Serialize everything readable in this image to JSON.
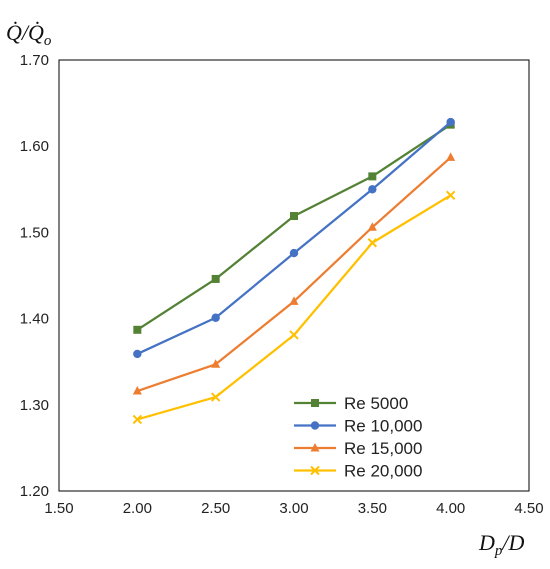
{
  "chart_data": {
    "type": "line",
    "ylabel": "Q̇/Q̇o",
    "xlabel": "Dp/D",
    "xlim": [
      1.5,
      4.5
    ],
    "ylim": [
      1.2,
      1.7
    ],
    "xticks": [
      "1.50",
      "2.00",
      "2.50",
      "3.00",
      "3.50",
      "4.00",
      "4.50"
    ],
    "yticks": [
      "1.20",
      "1.30",
      "1.40",
      "1.50",
      "1.60",
      "1.70"
    ],
    "grid": false,
    "legend_position": "bottom-right",
    "x": [
      2.0,
      2.5,
      3.0,
      3.5,
      4.0
    ],
    "series": [
      {
        "name": "Re 5000",
        "color": "#548235",
        "marker": "square",
        "values": [
          1.387,
          1.446,
          1.519,
          1.565,
          1.625
        ]
      },
      {
        "name": "Re 10,000",
        "color": "#4472C4",
        "marker": "circle",
        "values": [
          1.359,
          1.401,
          1.476,
          1.55,
          1.628
        ]
      },
      {
        "name": "Re 15,000",
        "color": "#ED7D31",
        "marker": "triangle",
        "values": [
          1.316,
          1.347,
          1.42,
          1.506,
          1.587
        ]
      },
      {
        "name": "Re 20,000",
        "color": "#FFC000",
        "marker": "x",
        "values": [
          1.283,
          1.309,
          1.381,
          1.488,
          1.543
        ]
      }
    ]
  }
}
